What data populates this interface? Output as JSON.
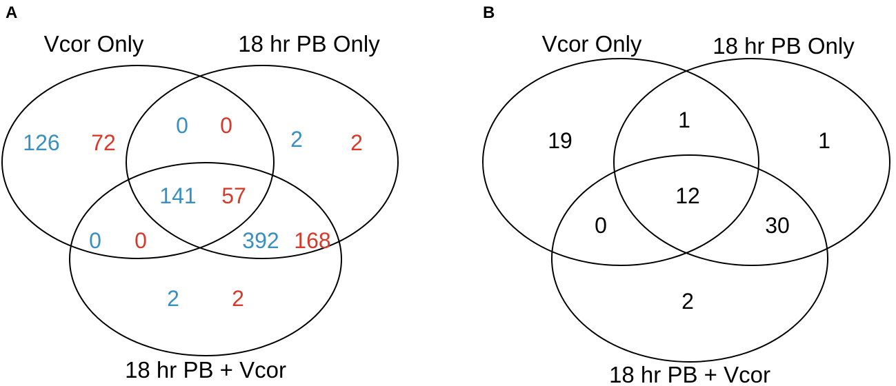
{
  "colors": {
    "blue": "#3a8fc1",
    "red": "#d73a2a",
    "black": "#000000"
  },
  "panel_a": {
    "letter": "A",
    "sets": {
      "vcor_only": "Vcor Only",
      "pb_only": "18 hr PB Only",
      "pb_vcor": "18 hr PB + Vcor"
    },
    "regions": {
      "vcor_exclusive": {
        "blue": "126",
        "red": "72"
      },
      "vcor_pb": {
        "blue": "0",
        "red": "0"
      },
      "pb_exclusive": {
        "blue": "2",
        "red": "2"
      },
      "all_three": {
        "blue": "141",
        "red": "57"
      },
      "vcor_pbvcor": {
        "blue": "0",
        "red": "0"
      },
      "pb_pbvcor": {
        "blue": "392",
        "red": "168"
      },
      "pbvcor_exclusive": {
        "blue": "2",
        "red": "2"
      }
    }
  },
  "panel_b": {
    "letter": "B",
    "sets": {
      "vcor_only": "Vcor Only",
      "pb_only": "18 hr PB Only",
      "pb_vcor": "18 hr PB + Vcor"
    },
    "regions": {
      "vcor_exclusive": "19",
      "vcor_pb": "1",
      "pb_exclusive": "1",
      "all_three": "12",
      "vcor_pbvcor": "0",
      "pb_pbvcor": "30",
      "pbvcor_exclusive": "2"
    }
  }
}
